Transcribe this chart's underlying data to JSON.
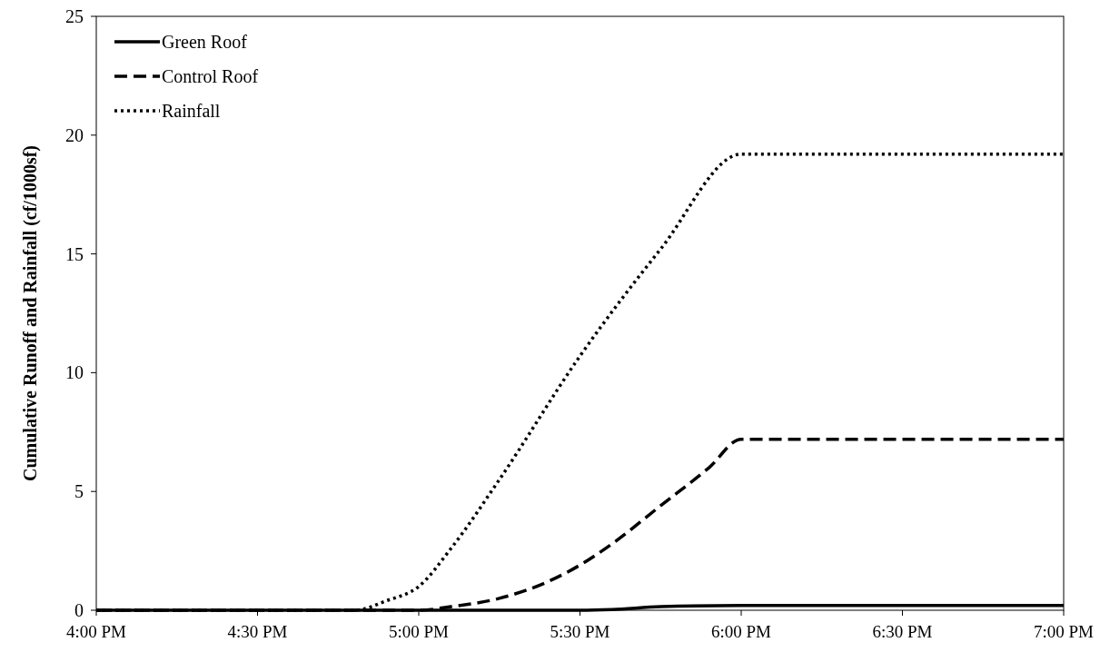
{
  "chart_data": {
    "type": "line",
    "ylabel": "Cumulative Runoff and Rainfall (cf/1000sf)",
    "xlim": [
      16,
      19
    ],
    "xticks": [
      {
        "value": 16,
        "label": "4:00 PM"
      },
      {
        "value": 16.5,
        "label": "4:30 PM"
      },
      {
        "value": 17,
        "label": "5:00 PM"
      },
      {
        "value": 17.5,
        "label": "5:30 PM"
      },
      {
        "value": 18,
        "label": "6:00 PM"
      },
      {
        "value": 18.5,
        "label": "6:30 PM"
      },
      {
        "value": 19,
        "label": "7:00 PM"
      }
    ],
    "ylim": [
      0,
      25
    ],
    "yticks": [
      0,
      5,
      10,
      15,
      20,
      25
    ],
    "grid": false,
    "legend": "top left",
    "series": [
      {
        "name": "Green Roof",
        "color": "#000000",
        "line_style": "solid",
        "x": [
          16,
          17,
          17.5,
          17.6,
          17.75,
          18,
          18.25,
          19
        ],
        "values": [
          0,
          0,
          0,
          0.03,
          0.15,
          0.2,
          0.2,
          0.2
        ]
      },
      {
        "name": "Control Roof",
        "color": "#000000",
        "line_style": "dashed",
        "x": [
          16,
          17,
          17.1,
          17.25,
          17.4,
          17.5,
          17.6,
          17.75,
          17.9,
          18,
          19
        ],
        "values": [
          0,
          0,
          0.15,
          0.5,
          1.2,
          1.9,
          2.8,
          4.4,
          6.0,
          7.2,
          7.2
        ]
      },
      {
        "name": "Rainfall",
        "color": "#000000",
        "line_style": "dotted",
        "x": [
          16,
          16.8,
          16.9,
          17,
          17.1,
          17.25,
          17.5,
          17.75,
          18,
          19
        ],
        "values": [
          0,
          0,
          0.4,
          1.0,
          2.6,
          5.5,
          10.7,
          15.2,
          19.2,
          19.2
        ]
      }
    ]
  }
}
